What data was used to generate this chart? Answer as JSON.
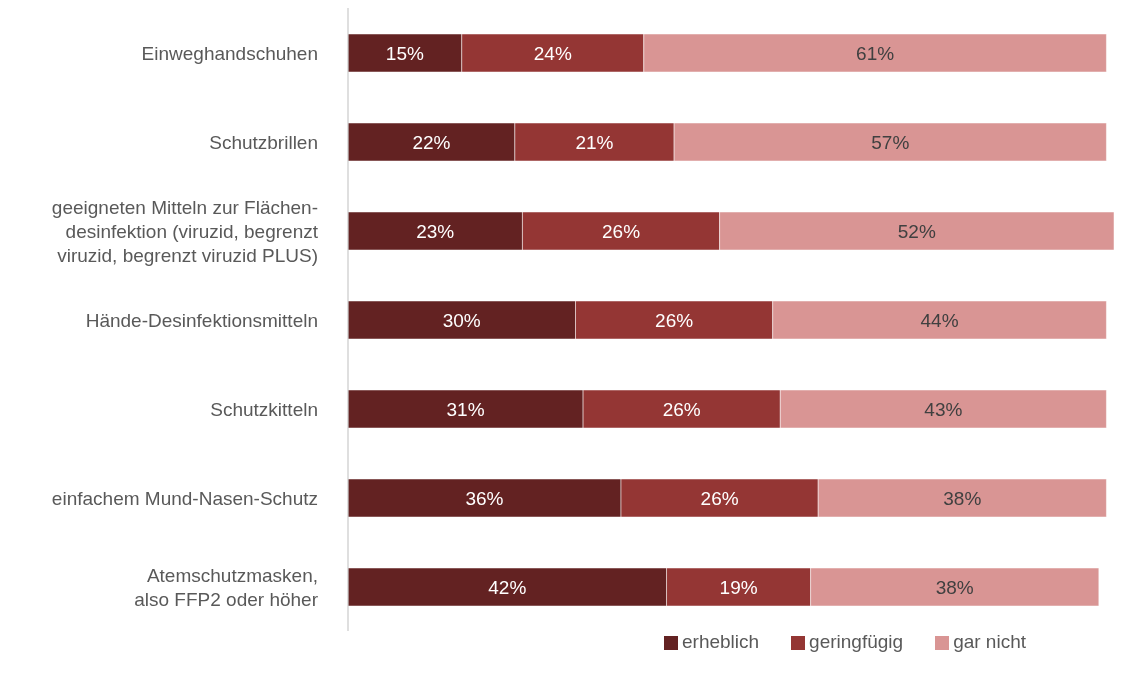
{
  "chart_data": {
    "type": "bar",
    "orientation": "horizontal",
    "stacked": true,
    "tick_labels": "y",
    "legend": "bottom",
    "categories": [
      "Einweghandschuhen",
      "Schutzbrillen",
      "geeigneten Mitteln zur Flächen-\ndesinfektion (viruzid, begrenzt\nviruzid, begrenzt viruzid PLUS)",
      "Hände-Desinfektionsmitteln",
      "Schutzkitteln",
      "einfachem Mund-Nasen-Schutz",
      "Atemschutzmasken,\nalso FFP2 oder höher"
    ],
    "series": [
      {
        "name": "erheblich",
        "color": "#632222",
        "values": [
          15,
          22,
          23,
          30,
          31,
          36,
          42
        ],
        "value_labels": [
          "15%",
          "22%",
          "23%",
          "30%",
          "31%",
          "36%",
          "42%"
        ]
      },
      {
        "name": "geringfügig",
        "color": "#943634",
        "values": [
          24,
          21,
          26,
          26,
          26,
          26,
          19
        ],
        "value_labels": [
          "24%",
          "21%",
          "26%",
          "26%",
          "26%",
          "26%",
          "19%"
        ]
      },
      {
        "name": "gar nicht",
        "color": "#d99594",
        "values": [
          61,
          57,
          52,
          44,
          43,
          38,
          38
        ],
        "value_labels": [
          "61%",
          "57%",
          "52%",
          "44%",
          "43%",
          "38%",
          "38%"
        ]
      }
    ]
  }
}
